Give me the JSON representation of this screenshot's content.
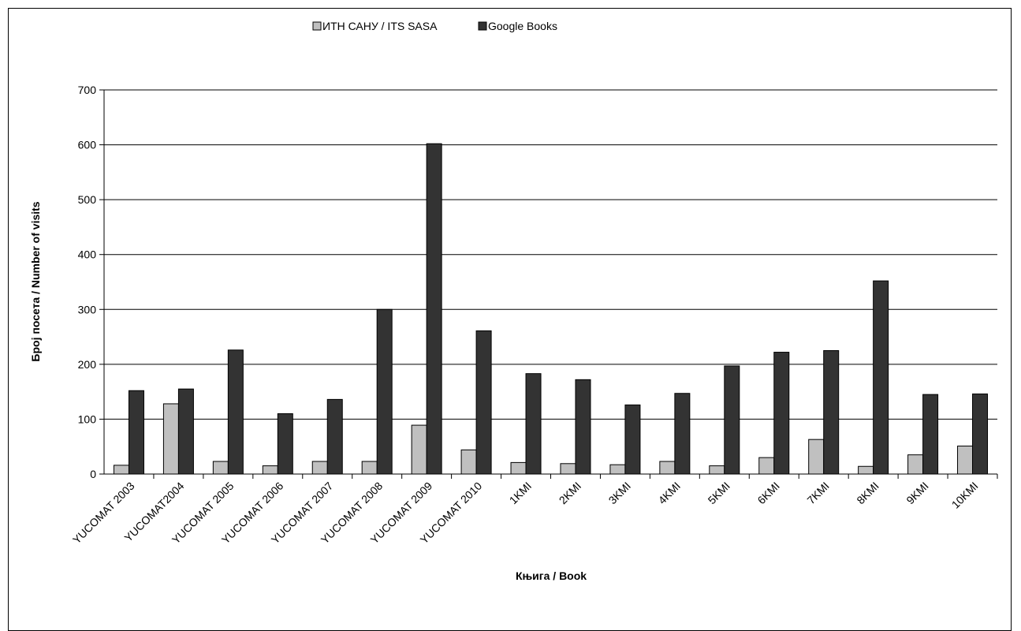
{
  "chart_data": {
    "type": "bar",
    "xlabel": "Књига / Book",
    "ylabel": "Број посета / Number of visits",
    "ylim": [
      0,
      700
    ],
    "yticks": [
      "0",
      "100",
      "200",
      "300",
      "400",
      "500",
      "600",
      "700"
    ],
    "grid": true,
    "legend_position": "top",
    "categories": [
      "YUCOMAT 2003",
      "YUCOMAT2004",
      "YUCOMAT 2005",
      "YUCOMAT 2006",
      "YUCOMAT 2007",
      "YUCOMAT 2008",
      "YUCOMAT 2009",
      "YUCOMAT 2010",
      "1KMI",
      "2KMI",
      "3KMI",
      "4KMI",
      "5KMI",
      "6KMI",
      "7KMI",
      "8KMI",
      "9KMI",
      "10KMI"
    ],
    "series": [
      {
        "name": "ИТН САНУ / ITS SASA",
        "color": "#c0c0c0",
        "values": [
          16,
          128,
          23,
          15,
          23,
          23,
          89,
          44,
          21,
          19,
          17,
          23,
          15,
          30,
          63,
          14,
          35,
          51
        ]
      },
      {
        "name": "Google Books",
        "color": "#333333",
        "values": [
          152,
          155,
          226,
          110,
          136,
          300,
          602,
          261,
          183,
          172,
          126,
          147,
          197,
          222,
          225,
          352,
          145,
          146
        ]
      }
    ]
  }
}
